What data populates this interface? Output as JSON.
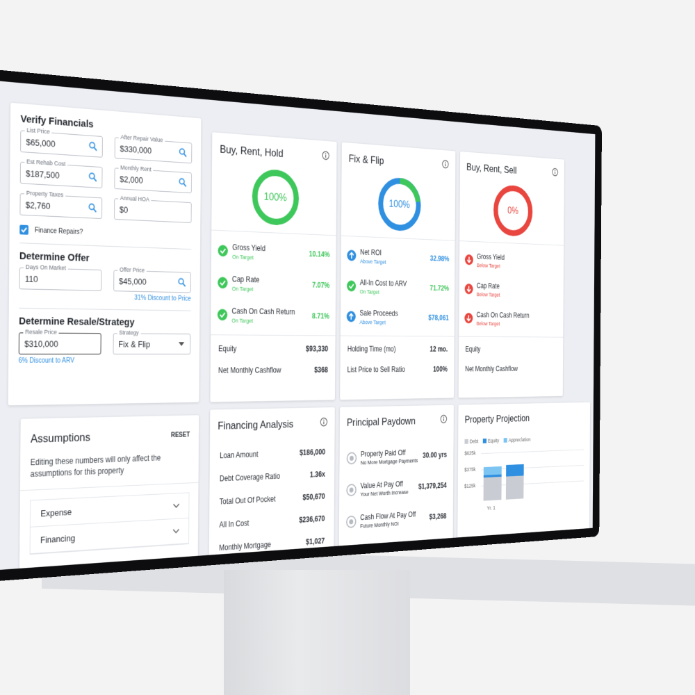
{
  "verify_financials": {
    "title": "Verify Financials",
    "fields": [
      {
        "label": "List Price",
        "value": "$65,000"
      },
      {
        "label": "After Repair Value",
        "value": "$330,000"
      },
      {
        "label": "Est Rehab Cost",
        "value": "$187,500"
      },
      {
        "label": "Monthly Rent",
        "value": "$2,000"
      },
      {
        "label": "Property Taxes",
        "value": "$2,760"
      },
      {
        "label": "Annual HOA",
        "value": "$0"
      }
    ],
    "checkbox": "Finance Repairs?"
  },
  "determine_offer": {
    "title": "Determine Offer",
    "fields": [
      {
        "label": "Days On Market",
        "value": "110"
      },
      {
        "label": "Offer Price",
        "value": "$45,000",
        "note": "31% Discount to Price"
      }
    ]
  },
  "determine_resale": {
    "title": "Determine Resale/Strategy",
    "fields": [
      {
        "label": "Resale Price",
        "value": "$310,000",
        "note": "6% Discount to ARV"
      },
      {
        "label": "Strategy",
        "value": "Fix & Flip"
      }
    ]
  },
  "assumptions": {
    "title": "Assumptions",
    "reset": "RESET",
    "description": "Editing these numbers will only affect the assumptions for this property",
    "sections": [
      "Expense",
      "Financing"
    ]
  },
  "strategy_cards": [
    {
      "title": "Buy, Rent, Hold",
      "score": "100%",
      "color": "#3ec75a",
      "metrics": [
        {
          "name": "Gross Yield",
          "status": "On Target",
          "value": "10.14%",
          "color": "#3ec75a"
        },
        {
          "name": "Cap Rate",
          "status": "On Target",
          "value": "7.07%",
          "color": "#3ec75a"
        },
        {
          "name": "Cash On Cash Return",
          "status": "On Target",
          "value": "8.71%",
          "color": "#3ec75a"
        }
      ],
      "rows": [
        {
          "label": "Equity",
          "value": "$93,330"
        },
        {
          "label": "Net Monthly Cashflow",
          "value": "$368"
        }
      ]
    },
    {
      "title": "Fix & Flip",
      "score": "100%",
      "color": "#2f8fe0",
      "metrics": [
        {
          "name": "Net ROI",
          "status": "Above Target",
          "value": "32.98%",
          "color": "#2f8fe0"
        },
        {
          "name": "All-In Cost to ARV",
          "status": "On Target",
          "value": "71.72%",
          "color": "#3ec75a"
        },
        {
          "name": "Sale Proceeds",
          "status": "Above Target",
          "value": "$78,061",
          "color": "#2f8fe0"
        }
      ],
      "rows": [
        {
          "label": "Holding Time (mo)",
          "value": "12 mo."
        },
        {
          "label": "List Price to Sell Ratio",
          "value": "100%"
        }
      ]
    },
    {
      "title": "Buy, Rent, Sell",
      "score": "0%",
      "color": "#e8463f",
      "metrics": [
        {
          "name": "Gross Yield",
          "status": "Below Target",
          "color": "#e8463f"
        },
        {
          "name": "Cap Rate",
          "status": "Below Target",
          "color": "#e8463f"
        },
        {
          "name": "Cash On Cash Return",
          "status": "Below Target",
          "color": "#e8463f"
        }
      ],
      "rows": [
        {
          "label": "Equity"
        },
        {
          "label": "Net Monthly Cashflow"
        }
      ]
    }
  ],
  "financing_analysis": {
    "title": "Financing Analysis",
    "rows": [
      {
        "label": "Loan Amount",
        "value": "$186,000"
      },
      {
        "label": "Debt Coverage Ratio",
        "value": "1.36x"
      },
      {
        "label": "Total Out Of Pocket",
        "value": "$50,670"
      },
      {
        "label": "All In Cost",
        "value": "$236,670"
      },
      {
        "label": "Monthly Mortgage",
        "value": "$1,027"
      }
    ]
  },
  "principal_paydown": {
    "title": "Principal Paydown",
    "rows": [
      {
        "label": "Property Paid Off",
        "sub": "No More Mortgage Payments",
        "value": "30.00 yrs"
      },
      {
        "label": "Value At Pay Off",
        "sub": "Your Net Worth Increase",
        "value": "$1,379,254"
      },
      {
        "label": "Cash Flow At Pay Off",
        "sub": "Future Monthly NOI",
        "value": "$3,268"
      }
    ]
  },
  "property_projection": {
    "title": "Property Projection",
    "legend": [
      {
        "name": "Debt",
        "color": "#c9ccd3"
      },
      {
        "name": "Equity",
        "color": "#2f8fe0"
      },
      {
        "name": "Appreciation",
        "color": "#7cc4f2"
      }
    ],
    "yticks": [
      "$625k",
      "$375k",
      "$125k"
    ],
    "xlabel": "Yr. 1"
  }
}
